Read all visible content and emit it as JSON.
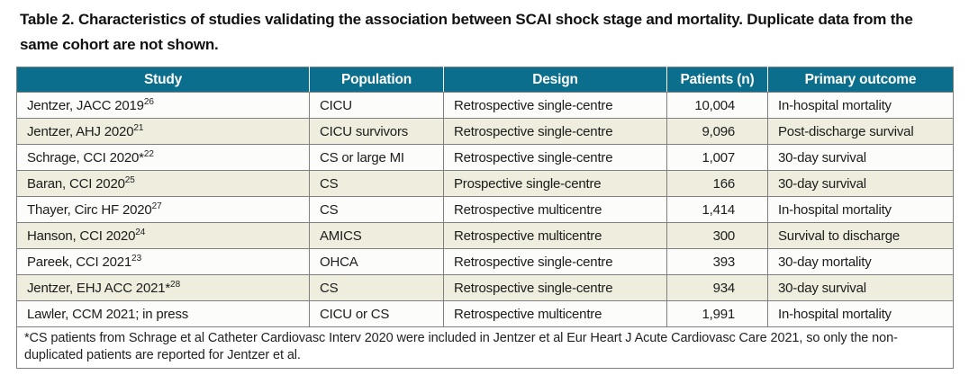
{
  "page": {
    "title": "Table 2. Characteristics of studies validating the association between SCAI shock stage and mortality. Duplicate data from the same cohort are not shown."
  },
  "colors": {
    "header_bg": "#0b6e8c",
    "header_text": "#ffffff",
    "row_bg": "#fcfcfa",
    "row_alt_bg": "#eeedde",
    "border": "#7f7f7f",
    "text": "#1c1c1c"
  },
  "table": {
    "columns": [
      "Study",
      "Population",
      "Design",
      "Patients (n)",
      "Primary outcome"
    ],
    "rows": [
      {
        "study": "Jentzer, JACC 2019",
        "sup": "26",
        "population": "CICU",
        "design": "Retrospective single-centre",
        "patients": "10,004",
        "outcome": "In-hospital mortality"
      },
      {
        "study": "Jentzer, AHJ 2020",
        "sup": "21",
        "population": "CICU survivors",
        "design": "Retrospective single-centre",
        "patients": "9,096",
        "outcome": "Post-discharge survival"
      },
      {
        "study": "Schrage, CCI 2020*",
        "sup": "22",
        "population": "CS or large MI",
        "design": "Retrospective single-centre",
        "patients": "1,007",
        "outcome": "30-day survival"
      },
      {
        "study": "Baran, CCI 2020",
        "sup": "25",
        "population": "CS",
        "design": "Prospective single-centre",
        "patients": "166",
        "outcome": "30-day survival"
      },
      {
        "study": "Thayer, Circ HF 2020",
        "sup": "27",
        "population": "CS",
        "design": "Retrospective multicentre",
        "patients": "1,414",
        "outcome": "In-hospital mortality"
      },
      {
        "study": "Hanson, CCI 2020",
        "sup": "24",
        "population": "AMICS",
        "design": "Retrospective multicentre",
        "patients": "300",
        "outcome": "Survival to discharge"
      },
      {
        "study": "Pareek, CCI 2021",
        "sup": "23",
        "population": "OHCA",
        "design": "Retrospective single-centre",
        "patients": "393",
        "outcome": "30-day mortality"
      },
      {
        "study": "Jentzer, EHJ ACC 2021*",
        "sup": "28",
        "population": "CS",
        "design": "Retrospective single-centre",
        "patients": "934",
        "outcome": "30-day survival"
      },
      {
        "study": "Lawler, CCM 2021; in press",
        "sup": "",
        "population": "CICU or CS",
        "design": "Retrospective multicentre",
        "patients": "1,991",
        "outcome": "In-hospital mortality"
      }
    ],
    "footnote": "*CS patients from Schrage et al Catheter Cardiovasc Interv 2020 were included in Jentzer et al Eur Heart J Acute Cardiovasc Care 2021, so only the non-duplicated patients are reported for Jentzer et al."
  }
}
